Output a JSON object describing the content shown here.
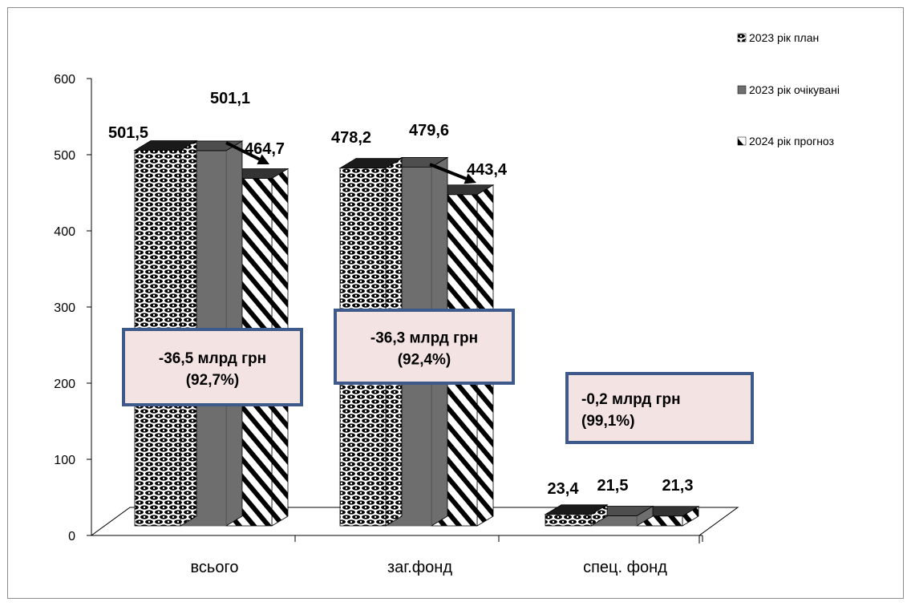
{
  "chart_data": {
    "type": "bar",
    "categories": [
      "всього",
      "заг.фонд",
      "спец. фонд"
    ],
    "series": [
      {
        "name": "2023 рік план",
        "values": [
          501.5,
          478.2,
          23.4
        ],
        "labels": [
          "501,5",
          "478,2",
          "23,4"
        ]
      },
      {
        "name": "2023 рік очікувані",
        "values": [
          501.1,
          479.6,
          21.5
        ],
        "labels": [
          "501,1",
          "479,6",
          "21,5"
        ]
      },
      {
        "name": "2024 рік прогноз",
        "values": [
          464.7,
          443.4,
          21.3
        ],
        "labels": [
          "464,7",
          "443,4",
          "21,3"
        ]
      }
    ],
    "yticks": [
      "0",
      "100",
      "200",
      "300",
      "400",
      "500",
      "600"
    ],
    "ylim": [
      0,
      600
    ],
    "legend_position": "top-right",
    "annotations": [
      {
        "category": "всього",
        "line1": "-36,5 млрд грн",
        "line2": "(92,7%)"
      },
      {
        "category": "заг.фонд",
        "line1": "-36,3 млрд грн",
        "line2": "(92,4%)"
      },
      {
        "category": "спец. фонд",
        "line1": "-0,2 млрд грн",
        "line2": "(99,1%)"
      }
    ],
    "colors": {
      "annotation_fill": "#f4e3e3",
      "annotation_border": "#3d5a8a",
      "series2_fill": "#6e6e6e"
    }
  }
}
